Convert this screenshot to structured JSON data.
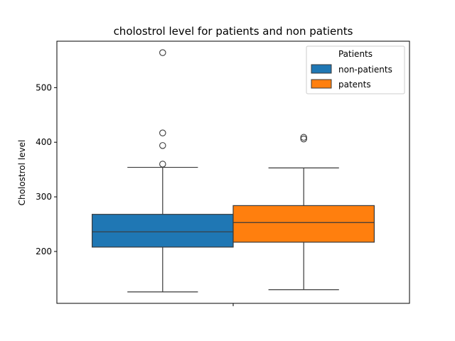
{
  "chart_data": {
    "type": "box",
    "title": "cholostrol level for patients and non patients",
    "xlabel": "",
    "ylabel": "Cholostrol level",
    "ylim": [
      105,
      585
    ],
    "yticks": [
      200,
      300,
      400,
      500
    ],
    "grid": false,
    "legend": {
      "title": "Patients",
      "placement": "top-right",
      "entries": [
        "non-patients",
        "patents"
      ]
    },
    "series": [
      {
        "name": "non-patients",
        "color": "#1f77b4",
        "whisker_low": 126,
        "q1": 208,
        "median": 236,
        "q3": 268,
        "whisker_high": 354,
        "outliers": [
          564,
          417,
          394,
          360
        ]
      },
      {
        "name": "patents",
        "color": "#ff7f0e",
        "whisker_low": 130,
        "q1": 217,
        "median": 253,
        "q3": 284,
        "whisker_high": 353,
        "outliers": [
          409,
          406
        ]
      }
    ]
  }
}
